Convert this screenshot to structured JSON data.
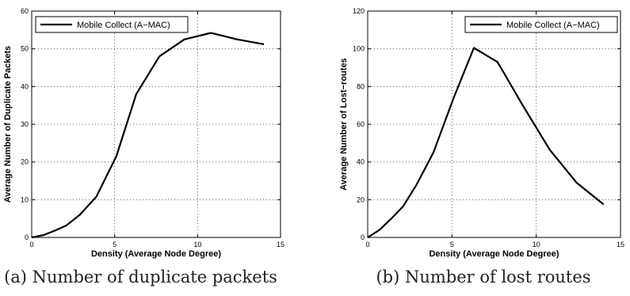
{
  "chart_data": [
    {
      "type": "line",
      "xlabel": "Density (Average Node Degree)",
      "ylabel": "Average Number of Duplicate Packets",
      "xlim": [
        0,
        15
      ],
      "ylim": [
        0,
        60
      ],
      "xticks": [
        0,
        5,
        10,
        15
      ],
      "yticks": [
        0,
        10,
        20,
        30,
        40,
        50,
        60
      ],
      "grid": "dotted",
      "legend": "top-left",
      "series": [
        {
          "name": "Mobile Collect (A−MAC)",
          "color": "#000000",
          "x": [
            0,
            0.7,
            1.4,
            2.1,
            2.9,
            3.9,
            5.1,
            6.3,
            7.7,
            9.2,
            10.8,
            12.4,
            14.0
          ],
          "y": [
            0,
            0.6,
            1.8,
            3.2,
            6.0,
            10.8,
            21.5,
            38.0,
            48.0,
            52.5,
            54.2,
            52.5,
            51.2
          ]
        }
      ],
      "caption": "(a) Number of duplicate packets"
    },
    {
      "type": "line",
      "xlabel": "Density (Average Node Degree)",
      "ylabel": "Average Number of Lost−routes",
      "xlim": [
        0,
        15
      ],
      "ylim": [
        0,
        120
      ],
      "xticks": [
        0,
        5,
        10,
        15
      ],
      "yticks": [
        0,
        20,
        40,
        60,
        80,
        100,
        120
      ],
      "grid": "dotted",
      "legend": "top-right",
      "series": [
        {
          "name": "Mobile Collect (A−MAC)",
          "color": "#000000",
          "x": [
            0,
            0.7,
            1.4,
            2.1,
            2.9,
            3.9,
            5.1,
            6.3,
            7.7,
            9.2,
            10.8,
            12.4,
            14.0
          ],
          "y": [
            0,
            4.0,
            10.0,
            16.5,
            28.0,
            45.0,
            74.0,
            100.5,
            93.0,
            70.0,
            46.5,
            29.0,
            17.5
          ]
        }
      ],
      "caption": "(b) Number of lost routes"
    }
  ]
}
